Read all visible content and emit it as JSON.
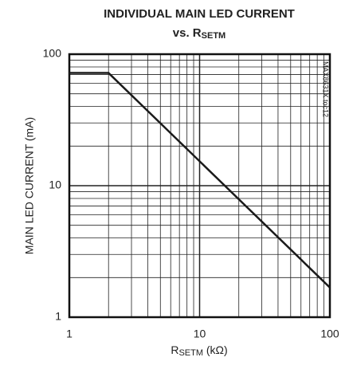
{
  "chart_data": {
    "type": "line",
    "title": "INDIVIDUAL MAIN LED CURRENT",
    "subtitle": [
      "vs. R",
      "SETM"
    ],
    "x_label": [
      "R",
      "SETM",
      " (kΩ)"
    ],
    "y_label": "MAIN LED CURRENT (mA)",
    "annotation": "MAX8631X toc12",
    "x": [
      1,
      2,
      100
    ],
    "series": [
      {
        "color": "#1a1a1a",
        "values": [
          72,
          72,
          1.68
        ]
      }
    ],
    "xlim": [
      1,
      100
    ],
    "ylim": [
      1,
      100
    ],
    "xticks": [
      1,
      10,
      100
    ],
    "yticks": [
      1,
      10,
      100
    ],
    "xlog": true,
    "ylog": true,
    "grid": true
  }
}
